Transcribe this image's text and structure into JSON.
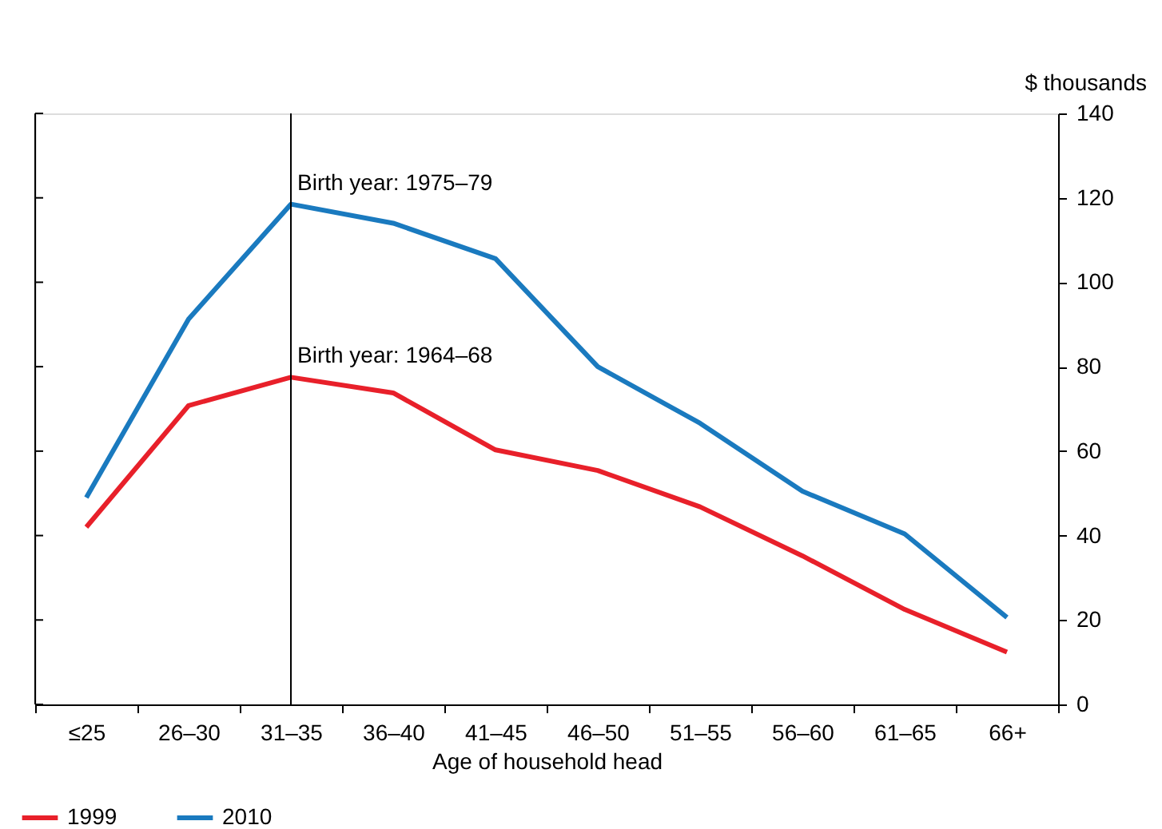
{
  "chart_data": {
    "type": "line",
    "xlabel": "Age of household head",
    "ylabel": "$ thousands",
    "categories": [
      "≤25",
      "26–30",
      "31–35",
      "36–40",
      "41–45",
      "46–50",
      "51–55",
      "56–60",
      "61–65",
      "66+"
    ],
    "series": [
      {
        "name": "1999",
        "color": "#e8202a",
        "values": [
          42,
          70.8,
          77.5,
          73.8,
          60.3,
          55.4,
          46.8,
          35.2,
          22.5,
          12.4
        ]
      },
      {
        "name": "2010",
        "color": "#1a7abf",
        "values": [
          49,
          91.3,
          118.5,
          114,
          105.6,
          80,
          66.6,
          50.5,
          40.4,
          20.6
        ]
      }
    ],
    "ylim": [
      0,
      140
    ],
    "yticks": [
      0,
      20,
      40,
      60,
      80,
      100,
      120,
      140
    ],
    "ref_lines": [
      {
        "axis": "x",
        "value": "31–35",
        "color": "#000000"
      }
    ],
    "annotations": [
      {
        "text": "Birth year: 1975–79",
        "x": "31–35",
        "y": 118.5
      },
      {
        "text": "Birth year: 1964–68",
        "x": "31–35",
        "y": 77.5
      }
    ],
    "grid": false,
    "legend": "bottom left",
    "marker": "none",
    "line_style": "solid"
  }
}
